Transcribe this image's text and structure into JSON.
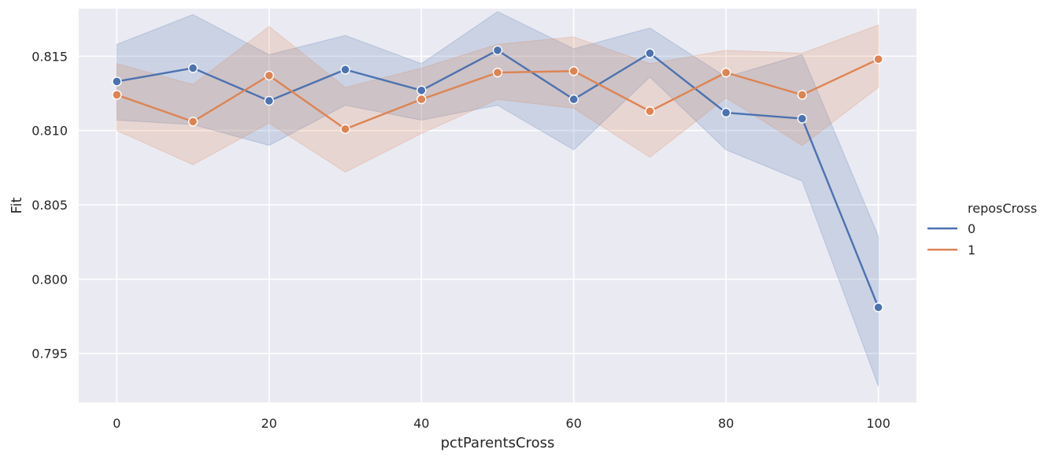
{
  "chart_data": {
    "type": "line",
    "xlabel": "pctParentsCross",
    "ylabel": "Fit",
    "xlim": [
      -5,
      105
    ],
    "ylim": [
      0.7917,
      0.8182
    ],
    "x_ticks": [
      0,
      20,
      40,
      60,
      80,
      100
    ],
    "y_ticks": [
      0.795,
      0.8,
      0.805,
      0.81,
      0.815
    ],
    "y_tick_labels": [
      "0.795",
      "0.800",
      "0.805",
      "0.810",
      "0.815"
    ],
    "grid": true,
    "legend_title": "reposCross",
    "legend_placement": "right",
    "x": [
      0,
      10,
      20,
      30,
      40,
      50,
      60,
      70,
      80,
      90,
      100
    ],
    "series": [
      {
        "name": "0",
        "color": "#4c72b0",
        "values": [
          0.8133,
          0.8142,
          0.812,
          0.8141,
          0.8127,
          0.8154,
          0.8121,
          0.8152,
          0.8112,
          0.8108,
          0.7981
        ],
        "ci_lower": [
          0.8107,
          0.8104,
          0.809,
          0.8117,
          0.8107,
          0.8117,
          0.8087,
          0.8136,
          0.8087,
          0.8066,
          0.7928
        ],
        "ci_upper": [
          0.8158,
          0.8178,
          0.8151,
          0.8164,
          0.8145,
          0.818,
          0.8155,
          0.8169,
          0.8136,
          0.8151,
          0.8029
        ]
      },
      {
        "name": "1",
        "color": "#dd8452",
        "values": [
          0.8124,
          0.8106,
          0.8137,
          0.8101,
          0.8121,
          0.8139,
          0.814,
          0.8113,
          0.8139,
          0.8124,
          0.8148
        ],
        "ci_lower": [
          0.81,
          0.8077,
          0.8105,
          0.8072,
          0.8098,
          0.8121,
          0.8115,
          0.8082,
          0.8122,
          0.809,
          0.8129
        ],
        "ci_upper": [
          0.8145,
          0.8131,
          0.817,
          0.8129,
          0.8142,
          0.8158,
          0.8163,
          0.8145,
          0.8154,
          0.8152,
          0.8171
        ]
      }
    ]
  }
}
